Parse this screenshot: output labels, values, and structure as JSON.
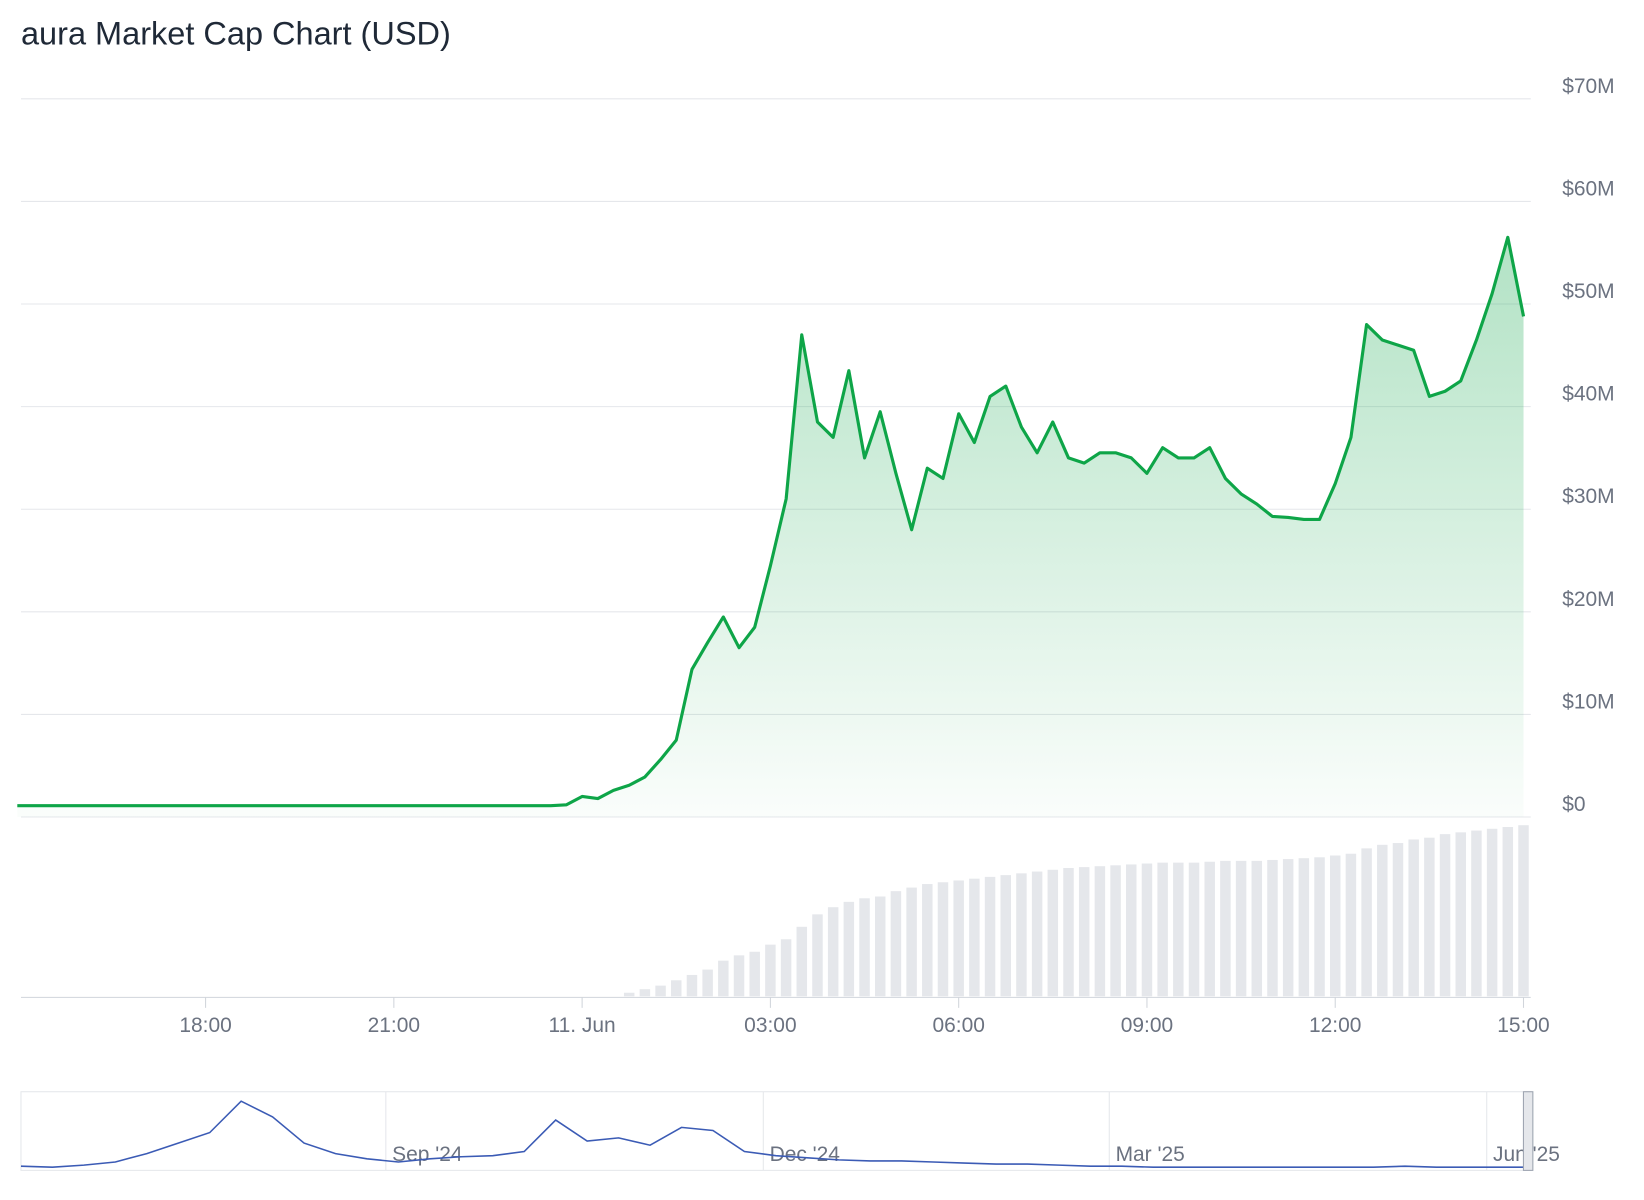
{
  "chart_data": {
    "type": "line",
    "title": "aura Market Cap Chart (USD)",
    "categories": [
      null,
      null,
      null,
      null,
      null,
      null,
      null,
      null,
      null,
      null,
      null,
      null,
      "18:00",
      null,
      null,
      null,
      null,
      null,
      null,
      null,
      null,
      null,
      null,
      null,
      "21:00",
      null,
      null,
      null,
      null,
      null,
      null,
      null,
      null,
      null,
      null,
      null,
      "11. Jun",
      null,
      null,
      null,
      null,
      null,
      null,
      null,
      null,
      null,
      null,
      null,
      "03:00",
      null,
      null,
      null,
      null,
      null,
      null,
      null,
      null,
      null,
      null,
      null,
      "06:00",
      null,
      null,
      null,
      null,
      null,
      null,
      null,
      null,
      null,
      null,
      null,
      "09:00",
      null,
      null,
      null,
      null,
      null,
      null,
      null,
      null,
      null,
      null,
      null,
      "12:00",
      null,
      null,
      null,
      null,
      null,
      null,
      null,
      null,
      null,
      null,
      null,
      "15:00"
    ],
    "series": [
      {
        "color": "#0ea548",
        "values": [
          1.1,
          1.1,
          1.1,
          1.1,
          1.1,
          1.1,
          1.1,
          1.1,
          1.1,
          1.1,
          1.1,
          1.1,
          1.1,
          1.1,
          1.1,
          1.1,
          1.1,
          1.1,
          1.1,
          1.1,
          1.1,
          1.1,
          1.1,
          1.1,
          1.1,
          1.1,
          1.1,
          1.1,
          1.1,
          1.1,
          1.1,
          1.1,
          1.1,
          1.1,
          1.1,
          1.2,
          2.0,
          1.8,
          2.6,
          3.1,
          3.9,
          5.6,
          7.5,
          14.4,
          17,
          19.5,
          16.5,
          18.5,
          24.5,
          31,
          47,
          38.5,
          37,
          43.5,
          35,
          39.5,
          33.5,
          28,
          34,
          33,
          39.3,
          36.5,
          41,
          42,
          38,
          35.5,
          38.5,
          35,
          34.5,
          35.5,
          35.5,
          35,
          33.5,
          36,
          35,
          35,
          36,
          33,
          31.5,
          30.5,
          29.3,
          29.2,
          29,
          29,
          32.5,
          37,
          48,
          46.5,
          46,
          45.5,
          41,
          41.5,
          42.5,
          46.5,
          51,
          56.5,
          48.8
        ]
      }
    ],
    "volume": [
      0,
      0,
      0,
      0,
      0,
      0,
      0,
      0,
      0,
      0,
      0,
      0,
      0,
      0,
      0,
      0,
      0,
      0,
      0,
      0,
      0,
      0,
      0,
      0,
      0,
      0,
      0,
      0,
      0,
      0,
      0,
      0,
      0,
      0,
      0,
      0,
      0,
      0,
      0,
      0.2,
      0.4,
      0.6,
      0.9,
      1.2,
      1.5,
      2,
      2.3,
      2.5,
      2.9,
      3.2,
      3.9,
      4.6,
      5,
      5.3,
      5.5,
      5.6,
      5.9,
      6.1,
      6.3,
      6.4,
      6.5,
      6.6,
      6.7,
      6.8,
      6.9,
      7,
      7.1,
      7.2,
      7.25,
      7.3,
      7.35,
      7.4,
      7.45,
      7.5,
      7.5,
      7.5,
      7.55,
      7.6,
      7.6,
      7.6,
      7.65,
      7.7,
      7.75,
      7.8,
      7.9,
      8,
      8.3,
      8.5,
      8.6,
      8.8,
      8.9,
      9.1,
      9.2,
      9.3,
      9.4,
      9.5,
      9.6
    ],
    "ylim": [
      0,
      70
    ],
    "yticks": [
      {
        "value": 0,
        "label": "$0"
      },
      {
        "value": 10,
        "label": "$10M"
      },
      {
        "value": 20,
        "label": "$20M"
      },
      {
        "value": 30,
        "label": "$30M"
      },
      {
        "value": 40,
        "label": "$40M"
      },
      {
        "value": 50,
        "label": "$50M"
      },
      {
        "value": 60,
        "label": "$60M"
      },
      {
        "value": 70,
        "label": "$70M"
      }
    ],
    "grid": true,
    "navigator": {
      "color": "#3b5bb5",
      "ylim": [
        0,
        1800
      ],
      "categories": [
        null,
        null,
        null,
        null,
        null,
        null,
        null,
        null,
        null,
        null,
        null,
        null,
        "Sep '24",
        null,
        null,
        null,
        null,
        null,
        null,
        null,
        null,
        null,
        null,
        null,
        "Dec '24",
        null,
        null,
        null,
        null,
        null,
        null,
        null,
        null,
        null,
        null,
        "Mar '25",
        null,
        null,
        null,
        null,
        null,
        null,
        null,
        null,
        null,
        null,
        null,
        "Jun '25",
        null
      ],
      "values": [
        75,
        50,
        100,
        175,
        375,
        625,
        875,
        1625,
        1250,
        625,
        375,
        250,
        175,
        250,
        300,
        325,
        425,
        1175,
        675,
        750,
        575,
        1000,
        925,
        425,
        325,
        275,
        225,
        200,
        200,
        175,
        150,
        125,
        125,
        100,
        75,
        75,
        50,
        50,
        50,
        50,
        50,
        50,
        50,
        50,
        75,
        50,
        50,
        50,
        50
      ]
    }
  }
}
